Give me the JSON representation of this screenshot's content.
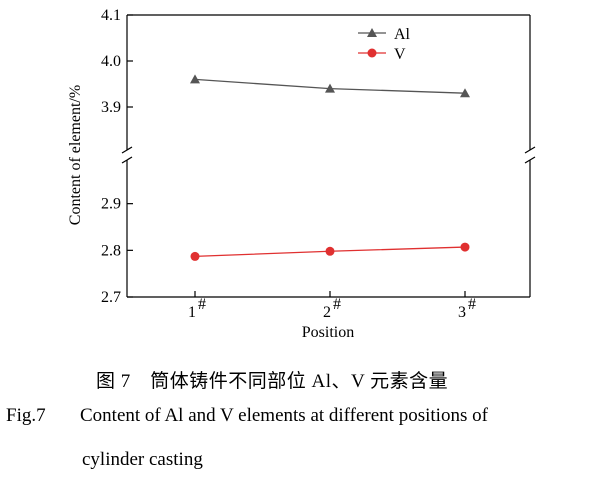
{
  "chart_data": {
    "type": "line",
    "categories": [
      "1#",
      "2#",
      "3#"
    ],
    "category_labels": [
      {
        "base": "1",
        "sup": "#"
      },
      {
        "base": "2",
        "sup": "#"
      },
      {
        "base": "3",
        "sup": "#"
      }
    ],
    "series": [
      {
        "name": "Al",
        "values": [
          3.96,
          3.94,
          3.93
        ],
        "color": "#555555",
        "marker": "triangle"
      },
      {
        "name": "V",
        "values": [
          2.787,
          2.798,
          2.807
        ],
        "color": "#e03030",
        "marker": "circle"
      }
    ],
    "y_break": {
      "upper_range": [
        3.8,
        4.1
      ],
      "lower_range": [
        2.7,
        3.0
      ],
      "upper_ticks": [
        "4.1",
        "4.0",
        "3.9"
      ],
      "lower_ticks": [
        "2.9",
        "2.8",
        "2.7"
      ]
    },
    "xlabel": "Position",
    "ylabel": "Content of element/%",
    "legend_position": "top-right",
    "grid": false
  },
  "caption": {
    "zh": "图 7　筒体铸件不同部位 Al、V 元素含量",
    "en_number": "Fig.7",
    "en_line1": "Content of Al and V elements at different positions of",
    "en_line2": "cylinder casting"
  }
}
